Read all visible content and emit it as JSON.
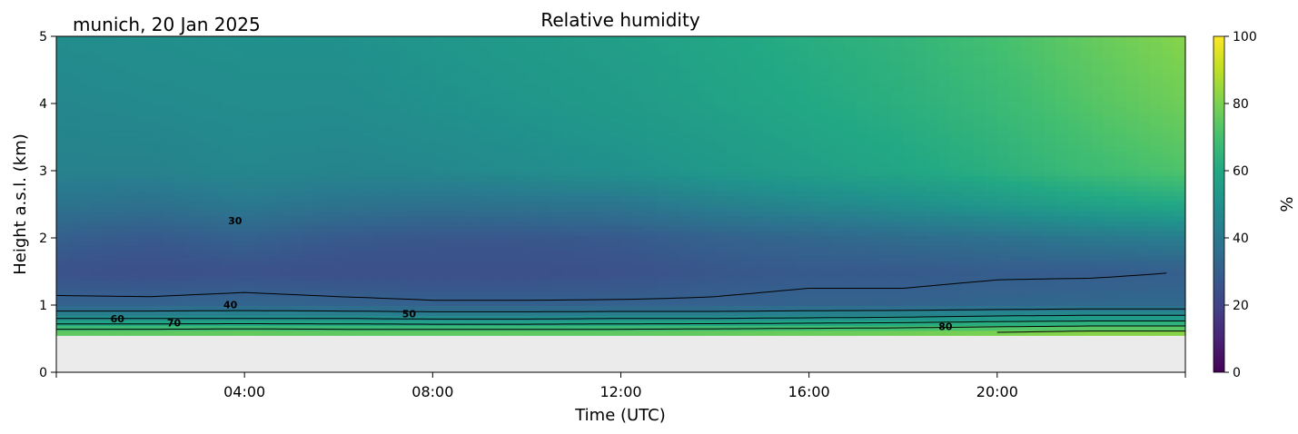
{
  "chart_data": {
    "type": "heatmap",
    "title": "Relative humidity",
    "subtitle": "munich, 20 Jan 2025",
    "xlabel": "Time (UTC)",
    "ylabel": "Height a.s.l. (km)",
    "x_ticks": [
      "04:00",
      "08:00",
      "12:00",
      "16:00",
      "20:00"
    ],
    "x_tick_hours": [
      4,
      8,
      12,
      16,
      20
    ],
    "xlim_hours": [
      0,
      24
    ],
    "y_ticks": [
      "0",
      "1",
      "2",
      "3",
      "4",
      "5"
    ],
    "ylim": [
      0,
      5
    ],
    "colorbar": {
      "label": "%",
      "ticks": [
        "0",
        "20",
        "40",
        "60",
        "80",
        "100"
      ],
      "range": [
        0,
        100
      ],
      "colormap": "viridis"
    },
    "data_floor_km": 0.55,
    "missing_color": "#ebebeb",
    "contour_levels": [
      30,
      40,
      50,
      60,
      70,
      80
    ],
    "contour_labels": [
      {
        "text": "30",
        "hour": 3.8,
        "km": 2.2
      },
      {
        "text": "40",
        "hour": 3.7,
        "km": 0.95
      },
      {
        "text": "50",
        "hour": 7.5,
        "km": 0.82
      },
      {
        "text": "60",
        "hour": 1.3,
        "km": 0.74
      },
      {
        "text": "70",
        "hour": 2.5,
        "km": 0.68
      },
      {
        "text": "80",
        "hour": 18.9,
        "km": 0.63
      }
    ],
    "series": [
      {
        "values_note": "",
        "hours": [
          0,
          2,
          4,
          6,
          8,
          10,
          12,
          14,
          16,
          18,
          20,
          22,
          24
        ],
        "rh_profile_km": [
          0.6,
          0.8,
          1.0,
          1.5,
          2.0,
          2.5,
          3.0,
          4.0,
          5.0
        ],
        "rh": [
          [
            75,
            50,
            32,
            25,
            30,
            38,
            44,
            46,
            48
          ],
          [
            75,
            50,
            32,
            24,
            28,
            37,
            44,
            47,
            49
          ],
          [
            76,
            50,
            33,
            25,
            31,
            40,
            46,
            48,
            50
          ],
          [
            75,
            50,
            32,
            24,
            28,
            38,
            45,
            48,
            50
          ],
          [
            75,
            49,
            31,
            24,
            27,
            37,
            46,
            50,
            52
          ],
          [
            75,
            49,
            31,
            24,
            27,
            38,
            48,
            52,
            54
          ],
          [
            75,
            50,
            31,
            25,
            28,
            39,
            50,
            54,
            56
          ],
          [
            76,
            50,
            31,
            27,
            31,
            43,
            53,
            57,
            59
          ],
          [
            77,
            51,
            32,
            28,
            33,
            46,
            56,
            60,
            62
          ],
          [
            78,
            52,
            32,
            28,
            35,
            49,
            59,
            63,
            65
          ],
          [
            80,
            54,
            33,
            29,
            37,
            53,
            63,
            67,
            70
          ],
          [
            82,
            55,
            34,
            29,
            40,
            57,
            68,
            73,
            76
          ],
          [
            82,
            55,
            34,
            30,
            42,
            60,
            72,
            78,
            82
          ]
        ]
      }
    ]
  }
}
